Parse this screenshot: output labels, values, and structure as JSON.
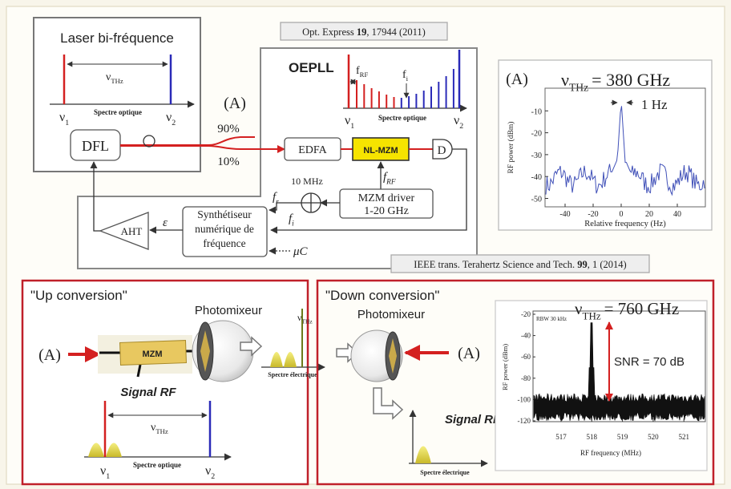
{
  "laser_panel": {
    "title": "Laser bi-fréquence",
    "nu_thz": {
      "symbol": "ν",
      "sub": "THz"
    },
    "nu1": {
      "symbol": "ν",
      "sub": "1"
    },
    "nu2": {
      "symbol": "ν",
      "sub": "2"
    },
    "axis_label": "Spectre optique"
  },
  "citation_top": {
    "journal": "Opt. Express ",
    "volume": "19",
    "rest": ", 17944 (2011)"
  },
  "oepll": {
    "title": "OEPLL",
    "output_label": "(A)",
    "split_high": "90%",
    "split_low": "10%",
    "comb": {
      "f_rf": {
        "symbol": "f",
        "sub": "RF"
      },
      "f_i": {
        "symbol": "f",
        "sub": "i"
      },
      "nu1": {
        "symbol": "ν",
        "sub": "1"
      },
      "nu2": {
        "symbol": "ν",
        "sub": "2"
      },
      "axis_label": "Spectre optique"
    },
    "blocks": {
      "dfl": "DFL",
      "edfa": "EDFA",
      "nl_mzm": "NL-MZM",
      "detector": "D",
      "mzm_driver": [
        "MZM driver",
        "1-20 GHz"
      ],
      "synth": [
        "Synthétiseur",
        "numérique de",
        "fréquence"
      ],
      "aht": "AHT"
    },
    "signals": {
      "f_rf": {
        "symbol": "f",
        "sub": "RF"
      },
      "ref": "10 MHz",
      "f_r": {
        "symbol": "f",
        "sub": "r"
      },
      "f_i": {
        "symbol": "f",
        "sub": "i"
      },
      "epsilon": "ε",
      "uc": "μC"
    }
  },
  "rf_plot": {
    "label": "(A)",
    "nu_thz": {
      "symbol": "ν",
      "sub": "THz",
      "value": "= 380 GHz"
    },
    "linewidth": "1 Hz",
    "ylabel": "RF power (dBm)",
    "yticks": [
      "-10",
      "-20",
      "-30",
      "-40",
      "-50"
    ],
    "xticks": [
      "-40",
      "-20",
      "0",
      "20",
      "40"
    ],
    "xlabel": "Relative frequency (Hz)"
  },
  "citation_bottom": {
    "journal": "IEEE trans. Terahertz Science and Tech. ",
    "volume": "99",
    "rest": ", 1 (2014)"
  },
  "up_conversion": {
    "title": "\"Up conversion\"",
    "photomixer": "Photomixeur",
    "input": "(A)",
    "mzm": "MZM",
    "signal": "Signal RF",
    "spectrum": {
      "nu_thz": {
        "symbol": "ν",
        "sub": "THz"
      },
      "nu1": {
        "symbol": "ν",
        "sub": "1"
      },
      "nu2": {
        "symbol": "ν",
        "sub": "2"
      },
      "axis_label": "Spectre optique"
    },
    "output_spectrum": {
      "nu_thz": {
        "symbol": "ν",
        "sub": "THz"
      },
      "axis_label": "Spectre électrique"
    }
  },
  "down_conversion": {
    "title": "\"Down conversion\"",
    "photomixer": "Photomixeur",
    "input": "(A)",
    "signal": "Signal RF",
    "axis_label": "Spectre électrique",
    "plot": {
      "nu_thz": {
        "symbol": "ν",
        "sub": "THz",
        "value": "= 760 GHz"
      },
      "rbw": "RBW 30 kHz",
      "snr": "SNR = 70 dB",
      "ylabel": "RF power (dBm)",
      "yticks": [
        "-20",
        "-40",
        "-60",
        "-80",
        "-100",
        "-120"
      ],
      "xticks": [
        "517",
        "518",
        "519",
        "520",
        "521"
      ],
      "xlabel": "RF frequency (MHz)"
    }
  }
}
